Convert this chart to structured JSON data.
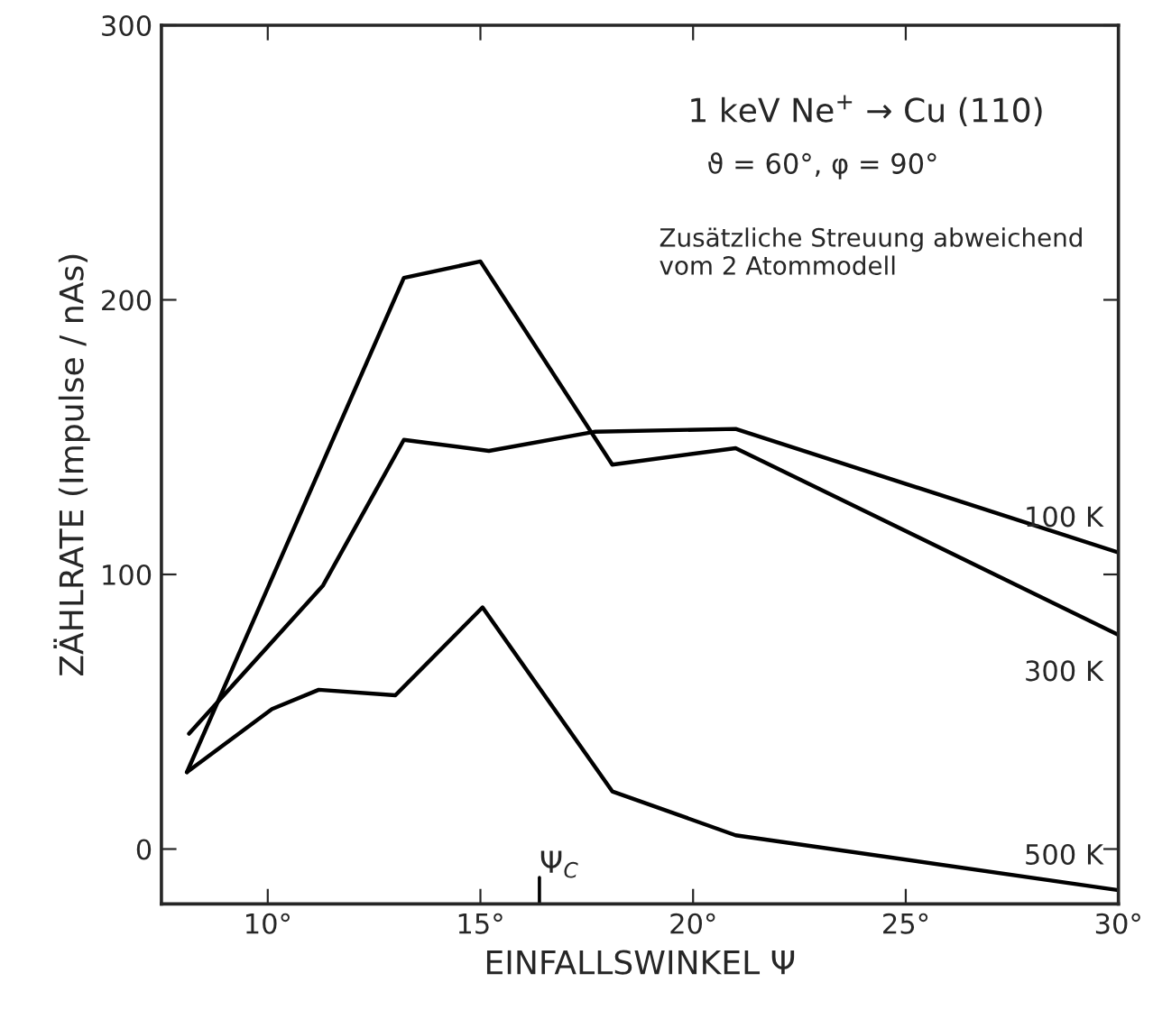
{
  "chart_data": {
    "type": "line",
    "xlabel": "EINFALLSWINKEL Ψ",
    "ylabel": "ZÄHLRATE (Impulse / nAs)",
    "series": [
      {
        "name": "100 K",
        "color": "#000000",
        "x": [
          8.15,
          11.3,
          13.2,
          15.2,
          17.7,
          21.0,
          30
        ],
        "values": [
          42,
          96,
          149,
          145,
          152,
          153,
          108
        ]
      },
      {
        "name": "300 K",
        "color": "#000000",
        "x": [
          8.1,
          13.2,
          15,
          18.1,
          21.0,
          30
        ],
        "values": [
          28,
          208,
          214,
          140,
          146,
          78
        ]
      },
      {
        "name": "500 K",
        "color": "#000000",
        "x": [
          8.1,
          10.1,
          11.2,
          13.0,
          15.05,
          18.1,
          21.0,
          30
        ],
        "values": [
          28,
          51,
          58,
          56,
          88,
          21,
          5,
          -15
        ]
      }
    ],
    "xlim": [
      7.5,
      30
    ],
    "ylim": [
      -20,
      300
    ],
    "xticks": [
      {
        "value": 10,
        "label": "10°"
      },
      {
        "value": 15,
        "label": "15°"
      },
      {
        "value": 20,
        "label": "20°"
      },
      {
        "value": 25,
        "label": "25°"
      },
      {
        "value": 30,
        "label": "30°"
      }
    ],
    "yticks": [
      0,
      100,
      200,
      300
    ],
    "annotations": [
      "1 keV Ne$^{+}$ → Cu (110)",
      "ϑ = 60°, φ = 90°",
      "Zusätzliche Streuung abweichend\nvom 2 Atommodell",
      "Ψ$_{C}$"
    ],
    "grid": false,
    "legend": false,
    "marker": "none",
    "line_style": "solid"
  }
}
